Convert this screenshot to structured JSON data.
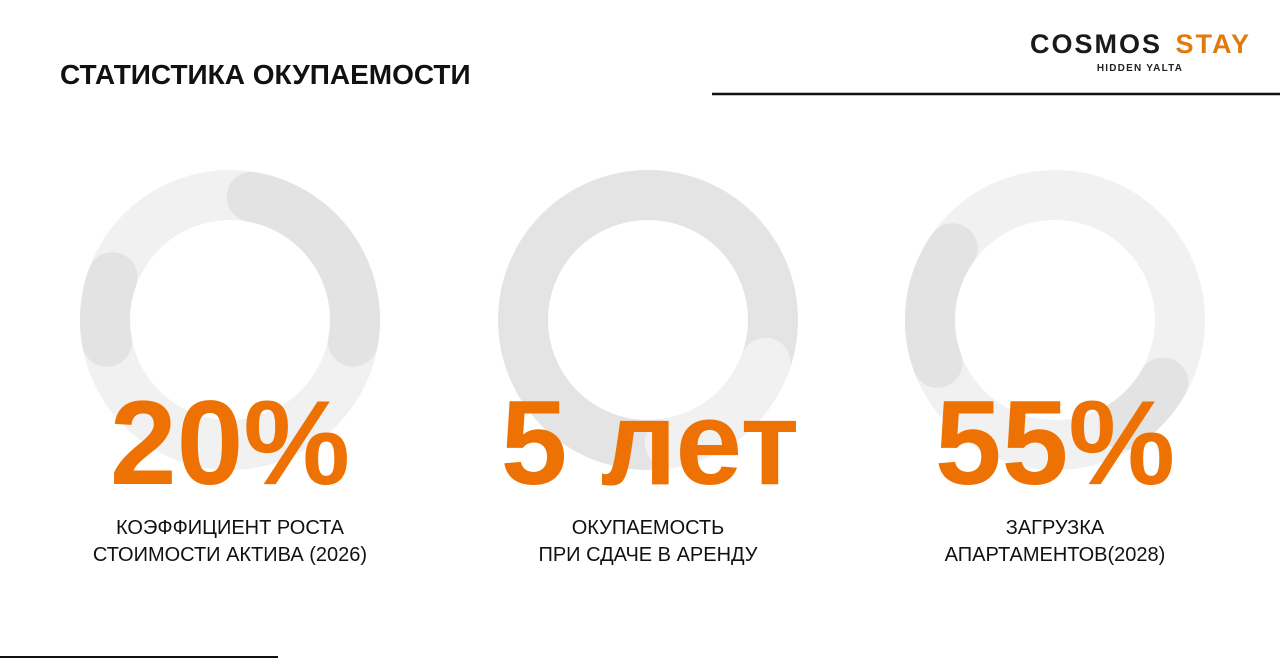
{
  "header": {
    "title": "СТАТИСТИКА ОКУПАЕМОСТИ"
  },
  "logo": {
    "word1": "COSMOS",
    "word2": "STAY",
    "tagline": "HIDDEN YALTA"
  },
  "stats": [
    {
      "value": "20%",
      "label": [
        "КОЭФФИЦИЕНТ РОСТА",
        "СТОИМОСТИ АКТИВА (2026)"
      ]
    },
    {
      "value": "5 лет",
      "label": [
        "ОКУПАЕМОСТЬ",
        "ПРИ СДАЧЕ В АРЕНДУ"
      ]
    },
    {
      "value": "55%",
      "label": [
        "ЗАГРУЗКА",
        "АПАРТАМЕНТОВ(2028)"
      ]
    }
  ]
}
